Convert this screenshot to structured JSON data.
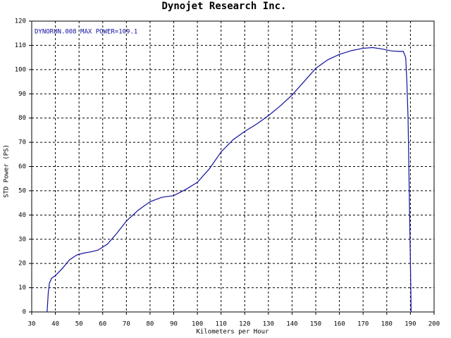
{
  "chart_data": {
    "type": "line",
    "title": "Dynojet Research Inc.",
    "annotation": "DYNORUN.008  MAX POWER=109.1",
    "xlabel": "Kilometers per Hour",
    "ylabel": "STD Power (PS)",
    "x": [
      36.5,
      37,
      37.5,
      38.5,
      40,
      43,
      46,
      49,
      52,
      55,
      58,
      62,
      66,
      70,
      75,
      80,
      85,
      90,
      95,
      100,
      105,
      110,
      115,
      120,
      125,
      130,
      135,
      140,
      145,
      150,
      155,
      160,
      165,
      170,
      174,
      178,
      182,
      185,
      187,
      188,
      188.5,
      189,
      189.5,
      190,
      190.3
    ],
    "series": [
      {
        "name": "DYNORUN.008",
        "color": "#1010a0",
        "values": [
          0,
          8,
          12,
          14,
          15,
          18,
          21.5,
          23.5,
          24.3,
          24.8,
          25.5,
          28,
          32.5,
          37.5,
          42,
          45.5,
          47.3,
          48,
          50.5,
          53.5,
          59,
          66,
          71,
          74.5,
          77.5,
          81,
          85,
          89.5,
          95,
          100.5,
          104,
          106.3,
          107.8,
          108.8,
          109.1,
          108.5,
          107.7,
          107.5,
          107.5,
          105,
          95,
          80,
          50,
          20,
          0
        ]
      }
    ],
    "xlim": [
      30,
      200
    ],
    "xticks": [
      30,
      40,
      50,
      60,
      70,
      80,
      90,
      100,
      110,
      120,
      130,
      140,
      150,
      160,
      170,
      180,
      190,
      200
    ],
    "ylim": [
      0,
      120
    ],
    "yticks": [
      0,
      10,
      20,
      30,
      40,
      50,
      60,
      70,
      80,
      90,
      100,
      110,
      120
    ],
    "grid": true
  }
}
